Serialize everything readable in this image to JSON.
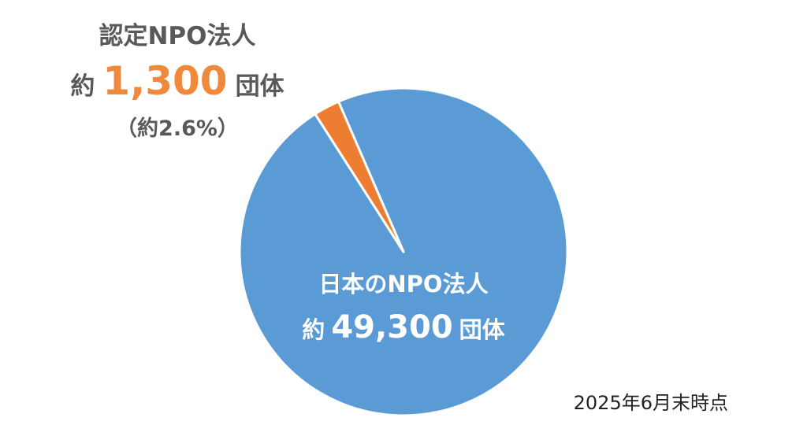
{
  "chart_data": {
    "type": "pie",
    "slices": [
      {
        "title": "日本のNPO法人",
        "prefix": "約",
        "value": 49300,
        "value_label": "49,300",
        "suffix": "団体",
        "color": "#5b9bd5"
      },
      {
        "title": "認定NPO法人",
        "prefix": "約",
        "value": 1300,
        "value_label": "1,300",
        "suffix": "団体",
        "percent_label": "（約2.6%）",
        "color": "#ed7d31",
        "label_color": "#f0883e"
      }
    ],
    "note": "2025年6月末時点"
  }
}
